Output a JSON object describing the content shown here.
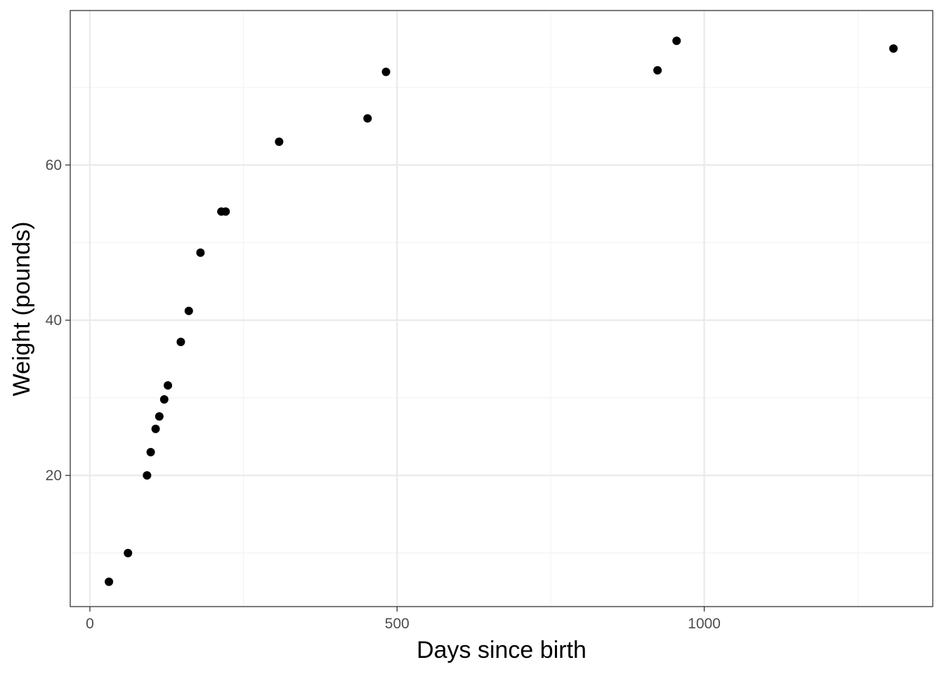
{
  "chart_data": {
    "type": "scatter",
    "title": "",
    "xlabel": "Days since birth",
    "ylabel": "Weight (pounds)",
    "xlim": [
      -32,
      1372
    ],
    "ylim": [
      3.1,
      79.9
    ],
    "x_ticks": [
      0,
      500,
      1000
    ],
    "x_tick_labels": [
      "0",
      "500",
      "1000"
    ],
    "x_minor_ticks": [
      250,
      750,
      1250
    ],
    "y_ticks": [
      20,
      40,
      60
    ],
    "y_tick_labels": [
      "20",
      "40",
      "60"
    ],
    "y_minor_ticks": [
      10,
      30,
      50,
      70
    ],
    "grid": true,
    "legend": "none",
    "colors": {
      "points": "#000000",
      "panel_border": "#333333",
      "grid_major": "#ebebeb",
      "grid_minor": "#f3f3f3",
      "tick_label": "#4d4d4d",
      "axis_title": "#000000"
    },
    "series": [
      {
        "points": [
          {
            "x": 31,
            "y": 6.3
          },
          {
            "x": 62,
            "y": 10
          },
          {
            "x": 93,
            "y": 20
          },
          {
            "x": 99,
            "y": 23
          },
          {
            "x": 107,
            "y": 26
          },
          {
            "x": 113,
            "y": 27.6
          },
          {
            "x": 121,
            "y": 29.8
          },
          {
            "x": 127,
            "y": 31.6
          },
          {
            "x": 148,
            "y": 37.2
          },
          {
            "x": 161,
            "y": 41.2
          },
          {
            "x": 180,
            "y": 48.7
          },
          {
            "x": 214,
            "y": 54
          },
          {
            "x": 221,
            "y": 54
          },
          {
            "x": 308,
            "y": 63
          },
          {
            "x": 452,
            "y": 66
          },
          {
            "x": 482,
            "y": 72
          },
          {
            "x": 924,
            "y": 72.2
          },
          {
            "x": 955,
            "y": 76
          },
          {
            "x": 1308,
            "y": 75
          }
        ]
      }
    ]
  }
}
